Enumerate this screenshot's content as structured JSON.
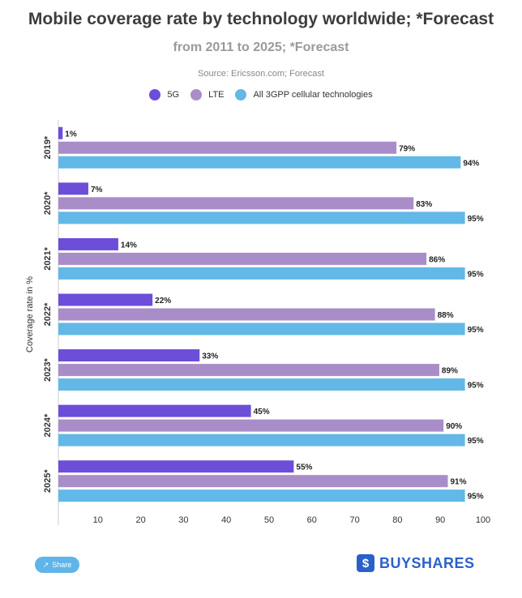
{
  "chart_data": {
    "type": "bar",
    "orientation": "horizontal",
    "title": "Mobile coverage rate by technology worldwide; *Forecast",
    "subtitle": "from 2011 to 2025; *Forecast",
    "source": "Source: Ericsson.com; Forecast",
    "ylabel": "Coverage rate in %",
    "xlabel": "",
    "xlim": [
      0,
      100
    ],
    "x_ticks": [
      10,
      20,
      30,
      40,
      50,
      60,
      70,
      80,
      90,
      100
    ],
    "categories": [
      "2019*",
      "2020*",
      "2021*",
      "2022*",
      "2023*",
      "2024*",
      "2025*"
    ],
    "series": [
      {
        "name": "5G",
        "color": "#6c4ed8",
        "values": [
          1,
          7,
          14,
          22,
          33,
          45,
          55
        ]
      },
      {
        "name": "LTE",
        "color": "#a98dc9",
        "values": [
          79,
          83,
          86,
          88,
          89,
          90,
          91
        ]
      },
      {
        "name": "All 3GPP cellular technologies",
        "color": "#62b8e6",
        "values": [
          94,
          95,
          95,
          95,
          95,
          95,
          95
        ]
      }
    ],
    "value_suffix": "%",
    "legend_position": "top-center",
    "grid": false
  },
  "footer": {
    "share_label": "Share",
    "share_icon": "share-icon",
    "brand_name": "BUYSHARES",
    "brand_logo": "buyshares-logo"
  }
}
